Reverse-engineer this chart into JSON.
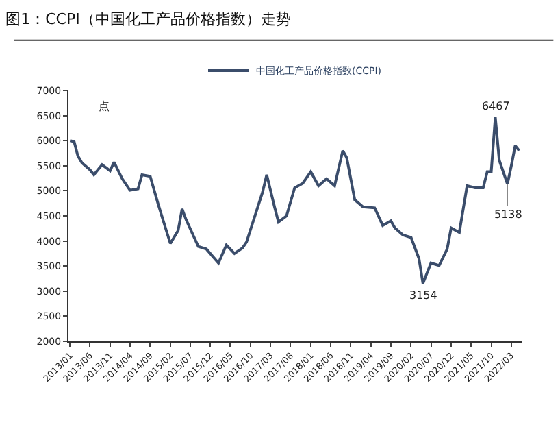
{
  "chart_data": {
    "type": "line",
    "title": "图1：CCPI（中国化工产品价格指数）走势",
    "ylabel": "点",
    "x": [
      "2013-01",
      "2013-02",
      "2013-03",
      "2013-04",
      "2013-06",
      "2013-07",
      "2013-09",
      "2013-11",
      "2013-12",
      "2014-02",
      "2014-04",
      "2014-06",
      "2014-07",
      "2014-09",
      "2014-11",
      "2015-01",
      "2015-02",
      "2015-04",
      "2015-05",
      "2015-06",
      "2015-09",
      "2015-11",
      "2016-02",
      "2016-04",
      "2016-06",
      "2016-08",
      "2016-09",
      "2017-01",
      "2017-02",
      "2017-04",
      "2017-05",
      "2017-07",
      "2017-09",
      "2017-11",
      "2018-01",
      "2018-03",
      "2018-05",
      "2018-07",
      "2018-09",
      "2018-10",
      "2018-12",
      "2019-02",
      "2019-05",
      "2019-07",
      "2019-09",
      "2019-10",
      "2019-12",
      "2020-02",
      "2020-04",
      "2020-05",
      "2020-07",
      "2020-09",
      "2020-11",
      "2020-12",
      "2021-02",
      "2021-04",
      "2021-06",
      "2021-08",
      "2021-09",
      "2021-10",
      "2021-11",
      "2021-12",
      "2022-02",
      "2022-03",
      "2022-04",
      "2022-05"
    ],
    "series": [
      {
        "name": "中国化工产品价格指数(CCPI)",
        "color": "#3b4d6b",
        "values": [
          6000,
          5980,
          5700,
          5560,
          5420,
          5320,
          5520,
          5400,
          5570,
          5240,
          5010,
          5040,
          5320,
          5290,
          4730,
          4210,
          3950,
          4210,
          4640,
          4420,
          3890,
          3840,
          3560,
          3920,
          3750,
          3860,
          3980,
          4980,
          5320,
          4680,
          4380,
          4500,
          5060,
          5150,
          5380,
          5100,
          5240,
          5100,
          5800,
          5660,
          4820,
          4680,
          4660,
          4310,
          4400,
          4260,
          4120,
          4070,
          3650,
          3154,
          3560,
          3510,
          3840,
          4260,
          4170,
          5100,
          5060,
          5060,
          5380,
          5380,
          6467,
          5610,
          5138,
          5480,
          5900,
          5800
        ]
      }
    ],
    "xlim": [
      "2012-12-20",
      "2022-05-20"
    ],
    "xticks": [
      {
        "value": "2013-01",
        "label": "2013/01"
      },
      {
        "value": "2013-06",
        "label": "2013/06"
      },
      {
        "value": "2013-11",
        "label": "2013/11"
      },
      {
        "value": "2014-04",
        "label": "2014/04"
      },
      {
        "value": "2014-09",
        "label": "2014/09"
      },
      {
        "value": "2015-02",
        "label": "2015/02"
      },
      {
        "value": "2015-07",
        "label": "2015/07"
      },
      {
        "value": "2015-12",
        "label": "2015/12"
      },
      {
        "value": "2016-05",
        "label": "2016/05"
      },
      {
        "value": "2016-10",
        "label": "2016/10"
      },
      {
        "value": "2017-03",
        "label": "2017/03"
      },
      {
        "value": "2017-08",
        "label": "2017/08"
      },
      {
        "value": "2018-01",
        "label": "2018/01"
      },
      {
        "value": "2018-06",
        "label": "2018/06"
      },
      {
        "value": "2018-11",
        "label": "2018/11"
      },
      {
        "value": "2019-04",
        "label": "2019/04"
      },
      {
        "value": "2019-09",
        "label": "2019/09"
      },
      {
        "value": "2020-02",
        "label": "2020/02"
      },
      {
        "value": "2020-07",
        "label": "2020/07"
      },
      {
        "value": "2020-12",
        "label": "2020/12"
      },
      {
        "value": "2021-05",
        "label": "2021/05"
      },
      {
        "value": "2021-10",
        "label": "2021/10"
      },
      {
        "value": "2022-03",
        "label": "2022/03"
      }
    ],
    "ylim": [
      2000,
      7000
    ],
    "yticks": [
      2000,
      2500,
      3000,
      3500,
      4000,
      4500,
      5000,
      5500,
      6000,
      6500,
      7000
    ],
    "annotations": [
      {
        "text": "6467",
        "x": "2021-11",
        "y": 6467
      },
      {
        "text": "3154",
        "x": "2020-05",
        "y": 3154
      },
      {
        "text": "5138",
        "x": "2022-02",
        "y": 5138
      }
    ],
    "legend": "top"
  }
}
